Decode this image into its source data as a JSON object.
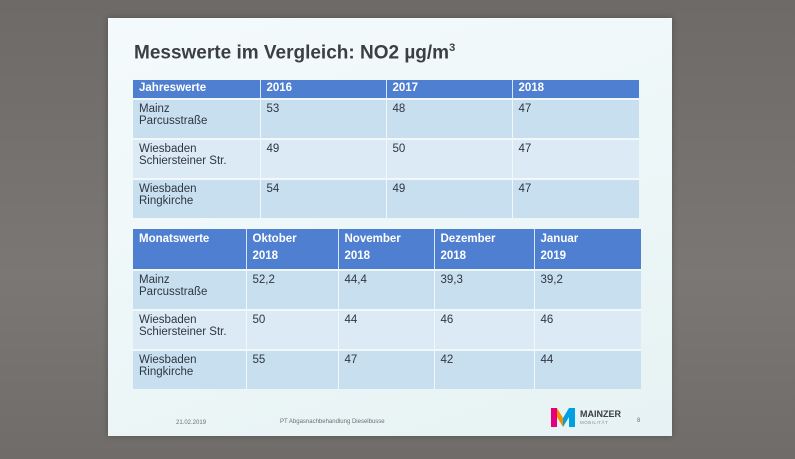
{
  "slide": {
    "title_main": "Messwerte im Vergleich: NO2 µg/m",
    "title_sup": "3"
  },
  "annual_table": {
    "headers": [
      "Jahreswerte",
      "2016",
      "2017",
      "2018"
    ],
    "rows": [
      {
        "location_line1": "Mainz",
        "location_line2": "Parcusstraße",
        "values": [
          "53",
          "48",
          "47"
        ]
      },
      {
        "location_line1": "Wiesbaden",
        "location_line2": "Schiersteiner Str.",
        "values": [
          "49",
          "50",
          "47"
        ]
      },
      {
        "location_line1": "Wiesbaden",
        "location_line2": "Ringkirche",
        "values": [
          "54",
          "49",
          "47"
        ]
      }
    ]
  },
  "monthly_table": {
    "headers": [
      {
        "line1": "Monatswerte",
        "line2": ""
      },
      {
        "line1": "Oktober",
        "line2": "2018"
      },
      {
        "line1": "November",
        "line2": "2018"
      },
      {
        "line1": "Dezember",
        "line2": "2018"
      },
      {
        "line1": "Januar",
        "line2": "2019"
      }
    ],
    "rows": [
      {
        "location_line1": "Mainz",
        "location_line2": "Parcusstraße",
        "values": [
          "52,2",
          "44,4",
          "39,3",
          "39,2"
        ]
      },
      {
        "location_line1": "Wiesbaden",
        "location_line2": "Schiersteiner Str.",
        "values": [
          "50",
          "44",
          "46",
          "46"
        ]
      },
      {
        "location_line1": "Wiesbaden",
        "location_line2": "Ringkirche",
        "values": [
          "55",
          "47",
          "42",
          "44"
        ]
      }
    ]
  },
  "footer": {
    "date": "21.02.2019",
    "text": "PT Abgasnachbehandlung Dieselbusse",
    "page_number": "8"
  },
  "logo": {
    "name": "MAINZER",
    "subtitle": "MOBILITÄT",
    "colors": [
      "#e4007c",
      "#f39200",
      "#00a0e3"
    ]
  }
}
